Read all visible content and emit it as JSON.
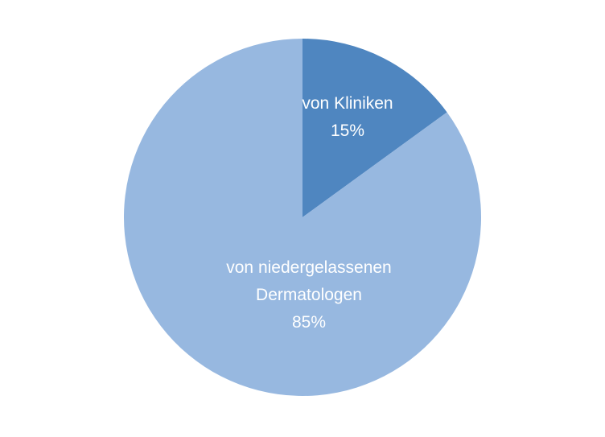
{
  "chart_data": {
    "type": "pie",
    "categories": [
      "von Kliniken",
      "von niedergelassenen Dermatologen"
    ],
    "values": [
      15,
      85
    ],
    "value_labels": [
      "15%",
      "85%"
    ],
    "colors": [
      "#4f86c0",
      "#97b8e0"
    ]
  }
}
